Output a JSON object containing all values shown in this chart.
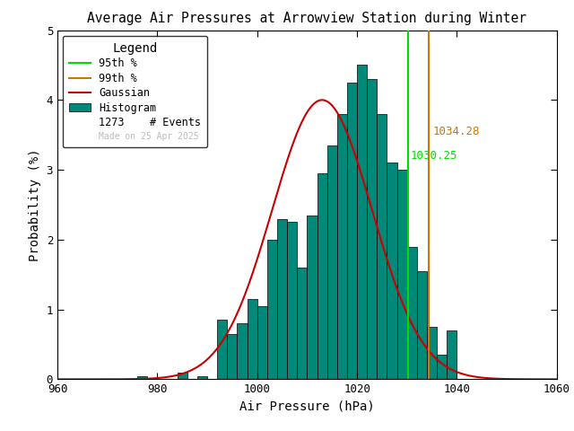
{
  "title": "Average Air Pressures at Arrowview Station during Winter",
  "xlabel": "Air Pressure (hPa)",
  "ylabel": "Probability (%)",
  "xlim": [
    960,
    1060
  ],
  "ylim": [
    0,
    5
  ],
  "xticks": [
    960,
    980,
    1000,
    1020,
    1040,
    1060
  ],
  "yticks": [
    0,
    1,
    2,
    3,
    4,
    5
  ],
  "n_events": 1273,
  "p95": 1030.25,
  "p99": 1034.28,
  "p95_color": "#00dd00",
  "p99_color": "#cc7700",
  "gaussian_color": "#cc0000",
  "hist_color": "#008878",
  "hist_edge_color": "#000000",
  "bg_color": "#ffffff",
  "watermark": "Made on 25 Apr 2025",
  "watermark_color": "#bbbbbb",
  "bin_width": 2,
  "gauss_mean": 1013.0,
  "gauss_std": 10.0,
  "gauss_peak": 4.0,
  "bin_lefts": [
    962,
    964,
    966,
    968,
    970,
    972,
    974,
    976,
    978,
    980,
    982,
    984,
    986,
    988,
    990,
    992,
    994,
    996,
    998,
    1000,
    1002,
    1004,
    1006,
    1008,
    1010,
    1012,
    1014,
    1016,
    1018,
    1020,
    1022,
    1024,
    1026,
    1028,
    1030,
    1032,
    1034,
    1036,
    1038,
    1040,
    1042,
    1044,
    1046,
    1048,
    1050,
    1052,
    1054,
    1056,
    1058
  ],
  "bin_heights": [
    0.0,
    0.0,
    0.0,
    0.0,
    0.0,
    0.0,
    0.0,
    0.05,
    0.0,
    0.0,
    0.0,
    0.1,
    0.0,
    0.05,
    0.0,
    0.85,
    0.65,
    0.8,
    1.15,
    1.05,
    2.0,
    2.3,
    2.25,
    1.6,
    2.35,
    2.95,
    3.35,
    3.8,
    4.25,
    4.5,
    4.3,
    3.8,
    3.1,
    3.0,
    1.9,
    1.55,
    0.75,
    0.35,
    0.7,
    0.0,
    0.0,
    0.0,
    0.0,
    0.0,
    0.0,
    0.0,
    0.0,
    0.0,
    0.0
  ]
}
